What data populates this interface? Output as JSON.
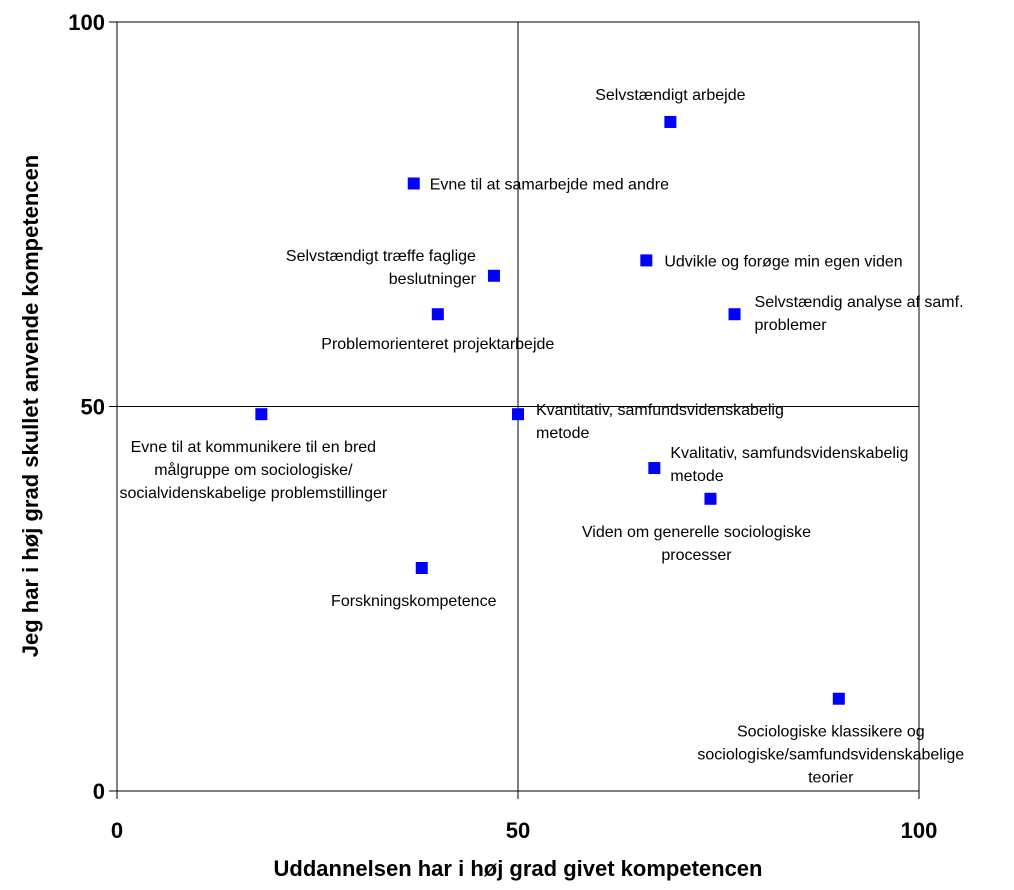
{
  "chart_data": {
    "type": "scatter",
    "title": "",
    "xlabel": "Uddannelsen har i høj grad givet kompetencen",
    "ylabel": "Jeg har i høj grad skullet anvende kompetencen",
    "xlim": [
      0,
      100
    ],
    "ylim": [
      0,
      100
    ],
    "xticks": [
      "0",
      "50",
      "100"
    ],
    "yticks": [
      "0",
      "50",
      "100"
    ],
    "reference_lines": {
      "x": 50,
      "y": 50
    },
    "grid": false,
    "marker_color": "#0000ff",
    "points": [
      {
        "x": 69,
        "y": 87,
        "label": [
          "Selvstændigt arbejde"
        ]
      },
      {
        "x": 37,
        "y": 79,
        "label": [
          "Evne til at samarbejde med andre"
        ]
      },
      {
        "x": 66,
        "y": 69,
        "label": [
          "Udvikle og forøge min egen viden"
        ]
      },
      {
        "x": 47,
        "y": 67,
        "label": [
          "Selvstændigt træffe faglige",
          "beslutninger"
        ]
      },
      {
        "x": 77,
        "y": 62,
        "label": [
          "Selvstændig analyse af samf.",
          "problemer"
        ]
      },
      {
        "x": 40,
        "y": 62,
        "label": [
          "Problemorienteret projektarbejde"
        ]
      },
      {
        "x": 50,
        "y": 49,
        "label": [
          "Kvantitativ, samfundsvidenskabelig",
          "metode"
        ]
      },
      {
        "x": 18,
        "y": 49,
        "label": [
          "Evne til at kommunikere til en bred",
          "målgruppe om sociologiske/",
          "socialvidenskabelige problemstillinger"
        ]
      },
      {
        "x": 67,
        "y": 42,
        "label": [
          "Kvalitativ, samfundsvidenskabelig",
          "metode"
        ]
      },
      {
        "x": 74,
        "y": 38,
        "label": [
          "Viden om generelle sociologiske",
          "processer"
        ]
      },
      {
        "x": 38,
        "y": 29,
        "label": [
          "Forskningskompetence"
        ]
      },
      {
        "x": 90,
        "y": 12,
        "label": [
          "Sociologiske klassikere og",
          "sociologiske/samfundsvidenskabelige",
          "teorier"
        ]
      }
    ]
  }
}
